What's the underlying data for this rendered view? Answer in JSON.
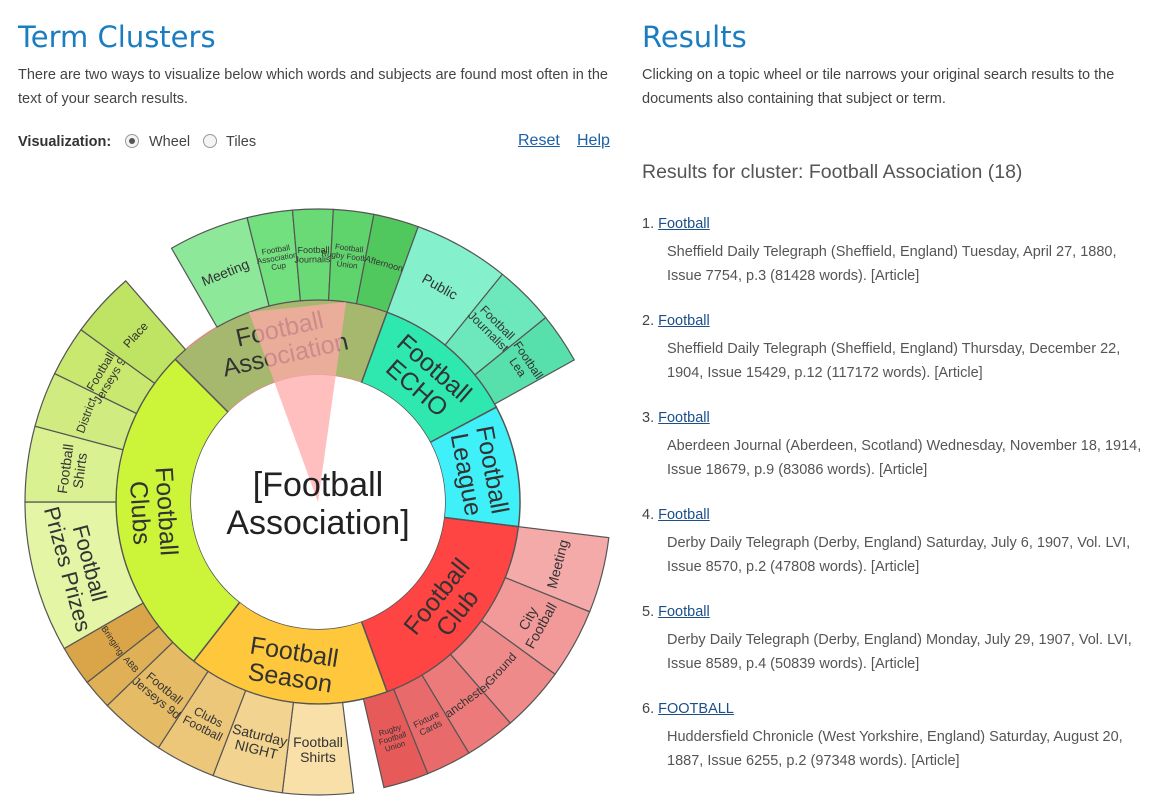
{
  "left": {
    "title": "Term Clusters",
    "intro": "There are two ways to visualize below which words and subjects are found most often in the text of your search results.",
    "viz_label": "Visualization:",
    "options": [
      "Wheel",
      "Tiles"
    ],
    "selected": "Wheel",
    "reset": "Reset",
    "help": "Help"
  },
  "wheel": {
    "center": [
      "[Football",
      "Association]"
    ],
    "inner": [
      {
        "label": [
          "Football",
          "Association"
        ],
        "color": "#a6b86e",
        "selected": true
      },
      {
        "label": [
          "Football",
          "ECHO"
        ],
        "color": "#2ee8b0"
      },
      {
        "label": [
          "Football",
          "League"
        ],
        "color": "#3ff0f8"
      },
      {
        "label": [
          "Football",
          "Club"
        ],
        "color": "#ff4444"
      },
      {
        "label": [
          "Football",
          "Season"
        ],
        "color": "#ffc83c"
      },
      {
        "label": [
          "Football",
          "Clubs"
        ],
        "color": "#ccf53a"
      }
    ],
    "outer": [
      {
        "label": [
          "Meeting"
        ],
        "color": "#8ee89a"
      },
      {
        "label": [
          "Football",
          "Association",
          "Cup"
        ],
        "color": "#72e07e"
      },
      {
        "label": [
          "Football",
          "Journalist"
        ],
        "color": "#6ada76"
      },
      {
        "label": [
          "Football",
          "Rugby Football",
          "Union"
        ],
        "color": "#60d46c"
      },
      {
        "label": [
          "Afternoon"
        ],
        "color": "#50c85e"
      },
      {
        "label": [
          "Public"
        ],
        "color": "#84f0cc"
      },
      {
        "label": [
          "Football",
          "Journalist"
        ],
        "color": "#6ce8bc"
      },
      {
        "label": [
          "Football",
          "Lea"
        ],
        "color": "#58e0ac"
      },
      {
        "label": [
          "Meeting"
        ],
        "color": "#f5aaaa"
      },
      {
        "label": [
          "City",
          "Football"
        ],
        "color": "#f29a9a"
      },
      {
        "label": [
          "Ground"
        ],
        "color": "#ef8a8a"
      },
      {
        "label": [
          "Manchester"
        ],
        "color": "#ec7a7a"
      },
      {
        "label": [
          "Fixture",
          "Cards"
        ],
        "color": "#e96a6a"
      },
      {
        "label": [
          "Rugby",
          "Football",
          "Union"
        ],
        "color": "#e65a5a"
      },
      {
        "label": [
          "Football",
          "Shirts"
        ],
        "color": "#f8e0a8"
      },
      {
        "label": [
          "Saturday",
          "NIGHT"
        ],
        "color": "#f2d390"
      },
      {
        "label": [
          "Clubs",
          "Football"
        ],
        "color": "#ecc77a"
      },
      {
        "label": [
          "Football",
          "Jerseys 9d"
        ],
        "color": "#e6bb66"
      },
      {
        "label": [
          "ABB"
        ],
        "color": "#e0b056"
      },
      {
        "label": [
          "Bringing"
        ],
        "color": "#daa548"
      },
      {
        "label": [
          "Football",
          "Prizes Prizes"
        ],
        "color": "#e4f6a6"
      },
      {
        "label": [
          "Football",
          "Shirts"
        ],
        "color": "#daf192"
      },
      {
        "label": [
          "District"
        ],
        "color": "#d0ec80"
      },
      {
        "label": [
          "Football",
          "Jerseys 9d"
        ],
        "color": "#c8e870"
      },
      {
        "label": [
          "Place"
        ],
        "color": "#bfe362"
      }
    ]
  },
  "right": {
    "title": "Results",
    "intro": "Clicking on a topic wheel or tile narrows your original search results to the documents also containing that subject or term.",
    "heading": "Results for cluster: Football Association (18)",
    "results": [
      {
        "num": "1.",
        "title": "Football",
        "desc": "Sheffield Daily Telegraph (Sheffield, England) Tuesday, April 27, 1880, Issue 7754, p.3 (81428 words). [Article]"
      },
      {
        "num": "2.",
        "title": "Football",
        "desc": "Sheffield Daily Telegraph (Sheffield, England) Thursday, December 22, 1904, Issue 15429, p.12 (117172 words). [Article]"
      },
      {
        "num": "3.",
        "title": "Football",
        "desc": "Aberdeen Journal (Aberdeen, Scotland) Wednesday, November 18, 1914, Issue 18679, p.9 (83086 words). [Article]"
      },
      {
        "num": "4.",
        "title": "Football",
        "desc": "Derby Daily Telegraph (Derby, England) Saturday, July 6, 1907, Vol. LVI, Issue 8570, p.2 (47808 words). [Article]"
      },
      {
        "num": "5.",
        "title": "Football",
        "desc": "Derby Daily Telegraph (Derby, England) Monday, July 29, 1907, Vol. LVI, Issue 8589, p.4 (50839 words). [Article]"
      },
      {
        "num": "6.",
        "title": "FOOTBALL",
        "desc": "Huddersfield Chronicle (West Yorkshire, England) Saturday, August 20, 1887, Issue 6255, p.2 (97348 words). [Article]"
      }
    ]
  }
}
